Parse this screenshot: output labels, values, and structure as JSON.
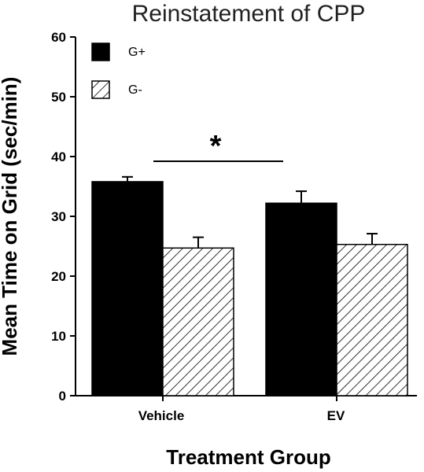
{
  "chart_data": {
    "type": "bar",
    "title": "Reinstatement of CPP",
    "xlabel": "Treatment Group",
    "ylabel": "Mean Time on Grid (sec/min)",
    "categories": [
      "Vehicle",
      "EV"
    ],
    "ylim": [
      0,
      60
    ],
    "yticks": [
      0,
      10,
      20,
      30,
      40,
      50,
      60
    ],
    "series": [
      {
        "name": "G+",
        "values": [
          35.8,
          32.2
        ],
        "errors": [
          0.8,
          2.0
        ],
        "fill": "solid",
        "color": "#000000"
      },
      {
        "name": "G-",
        "values": [
          24.7,
          25.3
        ],
        "errors": [
          1.8,
          1.8
        ],
        "fill": "hatched",
        "color": "#ffffff"
      }
    ],
    "legend_position": "top-left",
    "annotations": [
      {
        "text": "*",
        "type": "significance",
        "between_categories": [
          "Vehicle",
          "EV"
        ]
      }
    ],
    "grid": false
  }
}
